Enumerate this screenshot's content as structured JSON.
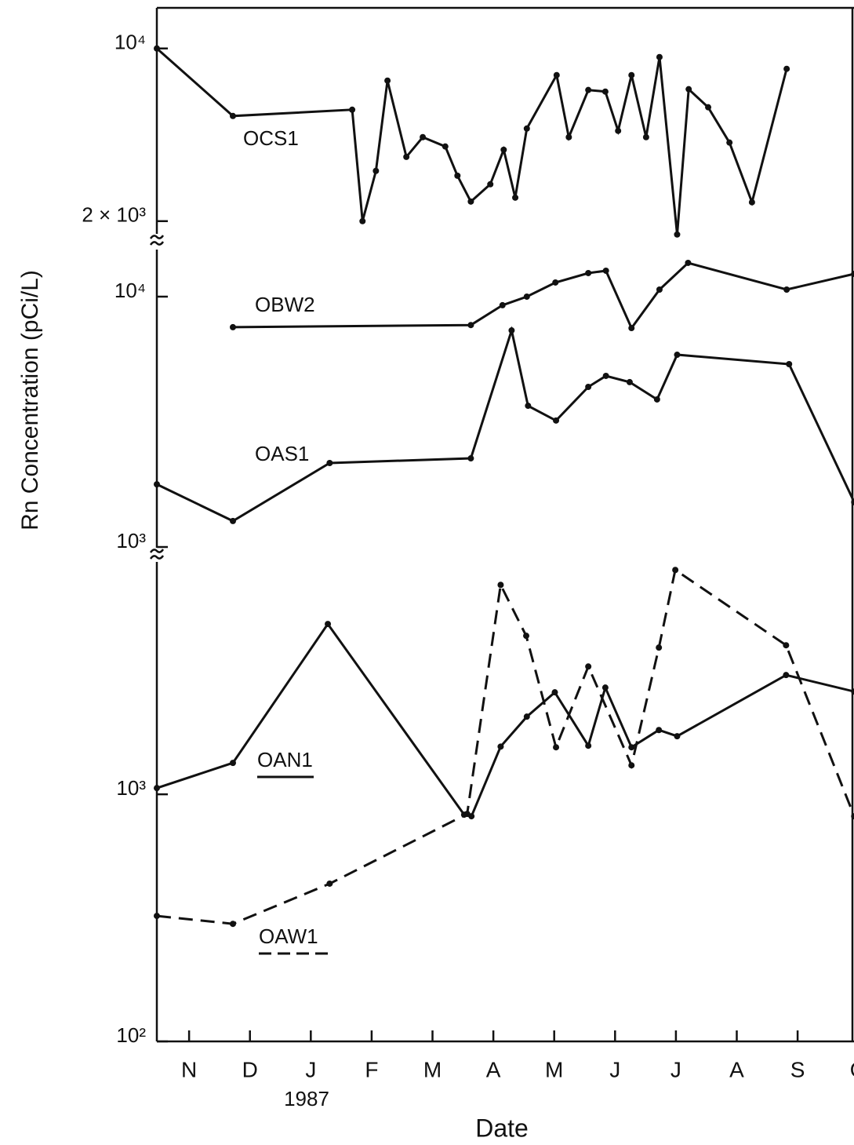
{
  "chart_data": [
    {
      "type": "line",
      "yscale": "log",
      "ylabel": "Rn  Concentration  (pCi/L)",
      "ylim": [
        1700,
        14600
      ],
      "yticks": [
        {
          "value": 10000,
          "label": "10⁴"
        },
        {
          "value": 2000,
          "label": "2 × 10³"
        }
      ],
      "xlim": [
        0.47,
        12
      ],
      "series": [
        {
          "name": "OCS1",
          "color": "#111111",
          "line_style": "solid",
          "x": [
            0.47,
            1.72,
            3.68,
            3.85,
            4.07,
            4.26,
            4.57,
            4.84,
            5.21,
            5.41,
            5.63,
            5.95,
            6.17,
            6.36,
            6.55,
            7.04,
            7.24,
            7.56,
            7.84,
            8.05,
            8.27,
            8.51,
            8.73,
            9.02,
            9.21,
            9.53,
            9.88,
            10.25,
            10.82
          ],
          "values": [
            10000,
            5330,
            5650,
            2000,
            3195,
            7410,
            3640,
            4375,
            4010,
            3055,
            2400,
            2820,
            3890,
            2490,
            4740,
            7800,
            4375,
            6790,
            6690,
            4640,
            7800,
            4375,
            9230,
            1766,
            6840,
            5780,
            4160,
            2385,
            8270
          ]
        }
      ]
    },
    {
      "type": "line",
      "yscale": "log",
      "ylim": [
        944,
        16100
      ],
      "yticks": [
        {
          "value": 10000,
          "label": "10⁴"
        },
        {
          "value": 1000,
          "label": "10³"
        }
      ],
      "xlim": [
        0.47,
        12
      ],
      "series": [
        {
          "name": "OBW2",
          "color": "#111111",
          "line_style": "solid",
          "x": [
            1.72,
            5.63,
            6.15,
            6.55,
            7.02,
            7.56,
            7.85,
            8.27,
            8.73,
            9.2,
            10.82,
            11.93
          ],
          "values": [
            7550,
            7700,
            9240,
            10000,
            11390,
            12420,
            12690,
            7490,
            10670,
            13640,
            10670,
            12330
          ]
        },
        {
          "name": "OAS1",
          "color": "#111111",
          "line_style": "solid",
          "x": [
            0.47,
            1.72,
            3.31,
            5.63,
            6.3,
            6.57,
            7.03,
            7.56,
            7.85,
            8.24,
            8.69,
            9.02,
            10.86,
            11.93
          ],
          "values": [
            1780,
            1270,
            2165,
            2260,
            7330,
            3665,
            3200,
            4360,
            4825,
            4555,
            3885,
            5860,
            5375,
            1510
          ]
        }
      ]
    },
    {
      "type": "line",
      "yscale": "log",
      "xlabel": "Date",
      "annotation": "1987",
      "ylim": [
        100,
        9450
      ],
      "yticks": [
        {
          "value": 1000,
          "label": "10³"
        },
        {
          "value": 100,
          "label": "10²"
        }
      ],
      "xlim": [
        0.47,
        12
      ],
      "xticks": [
        {
          "value": 1,
          "label": "N"
        },
        {
          "value": 2,
          "label": "D"
        },
        {
          "value": 3,
          "label": "J"
        },
        {
          "value": 4,
          "label": "F"
        },
        {
          "value": 5,
          "label": "M"
        },
        {
          "value": 6,
          "label": "A"
        },
        {
          "value": 7,
          "label": "M"
        },
        {
          "value": 8,
          "label": "J"
        },
        {
          "value": 9,
          "label": "J"
        },
        {
          "value": 10,
          "label": "A"
        },
        {
          "value": 11,
          "label": "S"
        },
        {
          "value": 12,
          "label": "O"
        }
      ],
      "series": [
        {
          "name": "OAN1",
          "color": "#111111",
          "line_style": "solid",
          "x": [
            0.47,
            1.72,
            3.28,
            5.52,
            5.64,
            6.12,
            6.55,
            7.01,
            7.56,
            7.84,
            8.27,
            8.72,
            9.02,
            10.81,
            11.93
          ],
          "values": [
            1060,
            1340,
            4890,
            827,
            815,
            1560,
            2062,
            2587,
            1573,
            2703,
            1550,
            1820,
            1718,
            3038,
            2605
          ]
        },
        {
          "name": "OAW1",
          "color": "#111111",
          "line_style": "dashed",
          "x": [
            0.47,
            1.72,
            3.31,
            5.57,
            6.12,
            6.54,
            7.03,
            7.56,
            8.27,
            8.72,
            8.99,
            10.81,
            11.93
          ],
          "values": [
            322,
            299,
            435,
            833,
            7040,
            4380,
            1550,
            3290,
            1310,
            3925,
            8090,
            4010,
            815
          ]
        }
      ]
    }
  ]
}
